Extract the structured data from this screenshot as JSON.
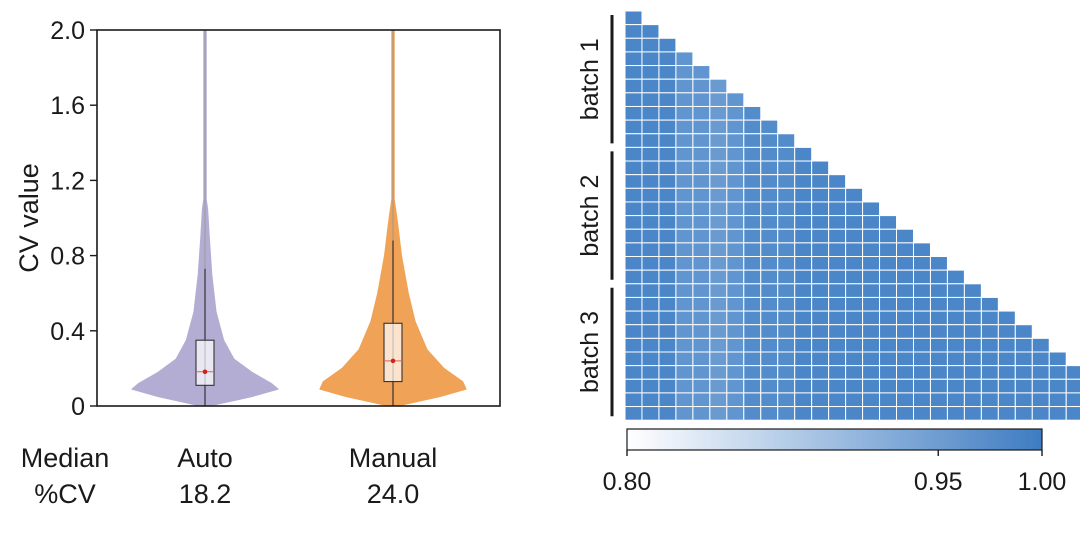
{
  "chart_data": [
    {
      "type": "violin",
      "ylabel": "CV value",
      "ylim": [
        0,
        2.0
      ],
      "yticks": [
        "0",
        "0.4",
        "0.8",
        "1.2",
        "1.6",
        "2.0"
      ],
      "ytick_values": [
        0,
        0.4,
        0.8,
        1.2,
        1.6,
        2.0
      ],
      "footer_label_line1": "Median",
      "footer_label_line2": "%CV",
      "series": [
        {
          "name": "Auto",
          "color": "#b3add3",
          "median_label": "18.2",
          "median": 0.182,
          "q1": 0.11,
          "q3": 0.35,
          "whisker_low": 0.0,
          "whisker_high": 0.73,
          "max": 2.0,
          "density": [
            [
              0.0,
              0.05
            ],
            [
              0.05,
              0.55
            ],
            [
              0.09,
              0.86
            ],
            [
              0.12,
              0.78
            ],
            [
              0.18,
              0.55
            ],
            [
              0.25,
              0.34
            ],
            [
              0.35,
              0.22
            ],
            [
              0.5,
              0.13
            ],
            [
              0.7,
              0.08
            ],
            [
              0.9,
              0.05
            ],
            [
              1.05,
              0.03
            ],
            [
              1.1,
              0.012
            ],
            [
              1.2,
              0.004
            ],
            [
              2.0,
              0.003
            ]
          ]
        },
        {
          "name": "Manual",
          "color": "#f0a257",
          "median_label": "24.0",
          "median": 0.24,
          "q1": 0.13,
          "q3": 0.44,
          "whisker_low": 0.0,
          "whisker_high": 0.88,
          "max": 2.0,
          "density": [
            [
              0.0,
              0.05
            ],
            [
              0.05,
              0.55
            ],
            [
              0.09,
              0.86
            ],
            [
              0.13,
              0.82
            ],
            [
              0.2,
              0.6
            ],
            [
              0.3,
              0.4
            ],
            [
              0.45,
              0.26
            ],
            [
              0.6,
              0.18
            ],
            [
              0.8,
              0.1
            ],
            [
              0.95,
              0.06
            ],
            [
              1.05,
              0.03
            ],
            [
              1.1,
              0.01
            ],
            [
              1.2,
              0.004
            ],
            [
              2.0,
              0.003
            ]
          ]
        }
      ]
    },
    {
      "type": "heatmap",
      "n": 30,
      "batches": [
        {
          "name": "batch 1",
          "start": 0,
          "end": 9
        },
        {
          "name": "batch 2",
          "start": 10,
          "end": 19
        },
        {
          "name": "batch 3",
          "start": 20,
          "end": 29
        }
      ],
      "value_range": [
        0.8,
        1.0
      ],
      "typical_value": 0.955,
      "cell_color": "#4a86c8",
      "colorbar": {
        "ticks": [
          "0.80",
          "0.95",
          "1.00"
        ],
        "tick_values": [
          0.8,
          0.95,
          1.0
        ],
        "color_low": "#ffffff",
        "color_high": "#3e7cc2"
      }
    }
  ]
}
